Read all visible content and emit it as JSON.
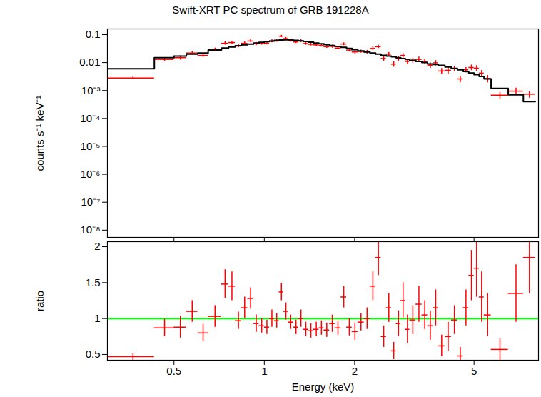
{
  "chart_data": [
    {
      "type": "scatter",
      "title": "Swift-XRT PC spectrum of GRB 191228A",
      "y_label": "counts s⁻¹ keV⁻¹",
      "log": true,
      "tick_labels": "y",
      "xlim": [
        0.3,
        8.2
      ],
      "xticks": [
        0.5,
        1,
        2,
        5
      ],
      "ylim": [
        5.5e-09,
        0.16
      ],
      "yticks": [
        {
          "value": 1e-08,
          "label": "10⁻⁸"
        },
        {
          "value": 1e-07,
          "label": "10⁻⁷"
        },
        {
          "value": 1e-06,
          "label": "10⁻⁶"
        },
        {
          "value": 1e-05,
          "label": "10⁻⁵"
        },
        {
          "value": 0.0001,
          "label": "10⁻⁴"
        },
        {
          "value": 0.001,
          "label": "10⁻³"
        },
        0.01,
        0.1
      ],
      "bins": [
        0.3,
        0.43,
        0.5,
        0.55,
        0.6,
        0.65,
        0.72,
        0.76,
        0.8,
        0.84,
        0.88,
        0.92,
        0.96,
        1.0,
        1.04,
        1.08,
        1.12,
        1.16,
        1.2,
        1.25,
        1.3,
        1.35,
        1.4,
        1.46,
        1.52,
        1.58,
        1.65,
        1.72,
        1.8,
        1.88,
        1.96,
        2.05,
        2.15,
        2.25,
        2.35,
        2.45,
        2.55,
        2.65,
        2.75,
        2.85,
        2.95,
        3.05,
        3.2,
        3.35,
        3.5,
        3.65,
        3.8,
        4.0,
        4.2,
        4.4,
        4.6,
        4.8,
        5.0,
        5.2,
        5.4,
        5.7,
        6.5,
        7.3,
        8.0
      ],
      "series": [
        {
          "type": "scatter",
          "marker": "cross",
          "color": "#ff0000",
          "values": [
            0.0028,
            0.013,
            0.015,
            0.022,
            0.018,
            0.029,
            0.049,
            0.052,
            0.039,
            0.049,
            0.059,
            0.047,
            0.048,
            0.049,
            0.059,
            0.06,
            0.088,
            0.072,
            0.061,
            0.055,
            0.06,
            0.048,
            0.045,
            0.043,
            0.041,
            0.037,
            0.038,
            0.033,
            0.046,
            0.028,
            0.024,
            0.025,
            0.024,
            0.032,
            0.037,
            0.014,
            0.02,
            0.0088,
            0.014,
            0.018,
            0.011,
            0.012,
            0.013,
            0.011,
            0.0081,
            0.0098,
            0.005,
            0.0053,
            0.0061,
            0.0026,
            0.0055,
            0.0067,
            0.0063,
            0.0042,
            0.0027,
            0.00068,
            0.00095,
            0.00074
          ],
          "errors": [
            0.0003,
            0.0018,
            0.0026,
            0.003,
            0.0026,
            0.0042,
            0.0066,
            0.0072,
            0.0048,
            0.0065,
            0.0069,
            0.006,
            0.0053,
            0.0056,
            0.0071,
            0.0062,
            0.0077,
            0.0078,
            0.0064,
            0.0062,
            0.0072,
            0.0057,
            0.0054,
            0.005,
            0.0047,
            0.0044,
            0.0049,
            0.0038,
            0.0053,
            0.0038,
            0.0035,
            0.0031,
            0.0036,
            0.0044,
            0.005,
            0.0027,
            0.0034,
            0.0019,
            0.0027,
            0.0035,
            0.0026,
            0.0024,
            0.0028,
            0.002,
            0.0018,
            0.0021,
            0.0012,
            0.0014,
            0.0012,
            0.00066,
            0.0012,
            0.0015,
            0.0015,
            0.0011,
            0.00078,
            0.00018,
            0.00028,
            0.0002
          ]
        },
        {
          "type": "step",
          "color": "#000000",
          "values": [
            0.006,
            0.015,
            0.017,
            0.02,
            0.022,
            0.028,
            0.033,
            0.036,
            0.04,
            0.043,
            0.046,
            0.05,
            0.053,
            0.056,
            0.059,
            0.062,
            0.064,
            0.065,
            0.064,
            0.062,
            0.06,
            0.057,
            0.054,
            0.05,
            0.047,
            0.044,
            0.041,
            0.038,
            0.035,
            0.032,
            0.029,
            0.026,
            0.024,
            0.022,
            0.02,
            0.018,
            0.017,
            0.016,
            0.015,
            0.014,
            0.013,
            0.012,
            0.011,
            0.01,
            0.009,
            0.0085,
            0.008,
            0.007,
            0.0062,
            0.0055,
            0.0048,
            0.0042,
            0.0037,
            0.0032,
            0.0026,
            0.0012,
            0.0007,
            0.0004
          ]
        }
      ]
    },
    {
      "type": "scatter",
      "x_label": "Energy (keV)",
      "y_label": "ratio",
      "log": "x",
      "xlim": [
        0.3,
        8.2
      ],
      "xticks": [
        0.5,
        1,
        2,
        5
      ],
      "ylim": [
        0.42,
        2.07
      ],
      "yticks": [
        0.5,
        1,
        1.5,
        2
      ],
      "bins": [
        0.3,
        0.43,
        0.5,
        0.55,
        0.6,
        0.65,
        0.72,
        0.76,
        0.8,
        0.84,
        0.88,
        0.92,
        0.96,
        1.0,
        1.04,
        1.08,
        1.12,
        1.16,
        1.2,
        1.25,
        1.3,
        1.35,
        1.4,
        1.46,
        1.52,
        1.58,
        1.65,
        1.72,
        1.8,
        1.88,
        1.96,
        2.05,
        2.15,
        2.25,
        2.35,
        2.45,
        2.55,
        2.65,
        2.75,
        2.85,
        2.95,
        3.05,
        3.2,
        3.35,
        3.5,
        3.65,
        3.8,
        4.0,
        4.2,
        4.4,
        4.6,
        4.8,
        5.0,
        5.2,
        5.4,
        5.7,
        6.5,
        7.3,
        8.0
      ],
      "series": [
        {
          "type": "hline",
          "color": "#00ff00",
          "values": [
            1
          ]
        },
        {
          "type": "scatter",
          "marker": "cross",
          "color": "#ff0000",
          "values": [
            0.47,
            0.87,
            0.88,
            1.1,
            0.8,
            1.03,
            1.48,
            1.45,
            0.97,
            1.15,
            1.28,
            0.93,
            0.9,
            0.88,
            1.0,
            0.97,
            1.37,
            1.1,
            0.95,
            0.88,
            1.0,
            0.85,
            0.83,
            0.85,
            0.87,
            0.84,
            0.93,
            0.87,
            1.3,
            0.88,
            0.82,
            0.95,
            1.0,
            1.45,
            1.85,
            0.75,
            1.15,
            0.55,
            0.93,
            1.25,
            0.85,
            0.98,
            1.2,
            1.05,
            0.9,
            1.15,
            0.62,
            0.75,
            0.98,
            0.48,
            1.15,
            1.6,
            1.7,
            1.3,
            1.05,
            0.57,
            1.35,
            1.85
          ],
          "errors": [
            0.05,
            0.12,
            0.15,
            0.15,
            0.12,
            0.15,
            0.2,
            0.2,
            0.12,
            0.15,
            0.15,
            0.12,
            0.1,
            0.1,
            0.12,
            0.1,
            0.12,
            0.12,
            0.1,
            0.1,
            0.12,
            0.1,
            0.1,
            0.1,
            0.1,
            0.1,
            0.12,
            0.1,
            0.15,
            0.12,
            0.12,
            0.12,
            0.15,
            0.2,
            0.25,
            0.15,
            0.2,
            0.12,
            0.18,
            0.25,
            0.2,
            0.2,
            0.25,
            0.2,
            0.2,
            0.25,
            0.15,
            0.2,
            0.2,
            0.12,
            0.25,
            0.35,
            0.4,
            0.35,
            0.3,
            0.15,
            0.4,
            0.5
          ]
        }
      ]
    }
  ]
}
